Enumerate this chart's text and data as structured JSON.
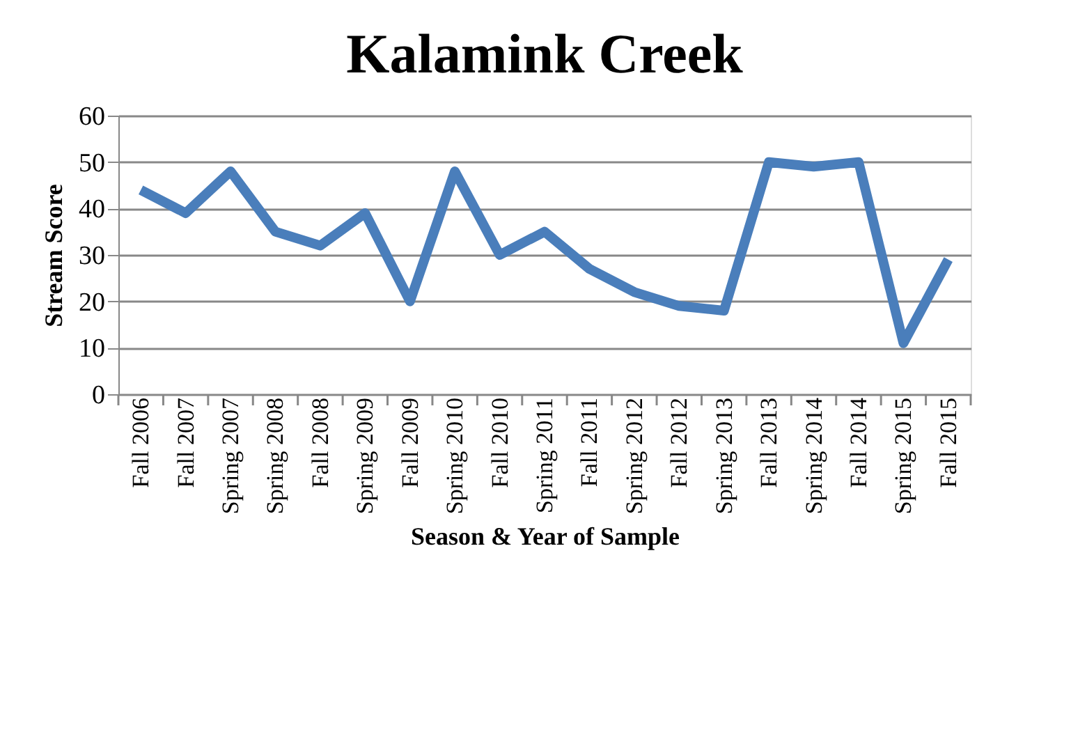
{
  "chart_data": {
    "type": "line",
    "title": "Kalamink Creek",
    "xlabel": "Season & Year of Sample",
    "ylabel": "Stream Score",
    "categories": [
      "Fall 2006",
      "Fall 2007",
      "Spring 2007",
      "Spring 2008",
      "Fall 2008",
      "Spring 2009",
      "Fall 2009",
      "Spring 2010",
      "Fall 2010",
      "Spring 2011",
      "Fall 2011",
      "Spring 2012",
      "Fall 2012",
      "Spring 2013",
      "Fall 2013",
      "Spring 2014",
      "Fall 2014",
      "Spring 2015",
      "Fall 2015"
    ],
    "series": [
      {
        "color": "#4a7ebb",
        "values": [
          44,
          39,
          48,
          35,
          32,
          39,
          20,
          48,
          30,
          35,
          27,
          22,
          19,
          18,
          50,
          49,
          50,
          11,
          29
        ]
      }
    ],
    "ylim": [
      0,
      60
    ],
    "yticks": [
      0,
      10,
      20,
      30,
      40,
      50,
      60
    ],
    "grid": "y",
    "legend": false,
    "marker": "none",
    "line_style": "solid"
  }
}
